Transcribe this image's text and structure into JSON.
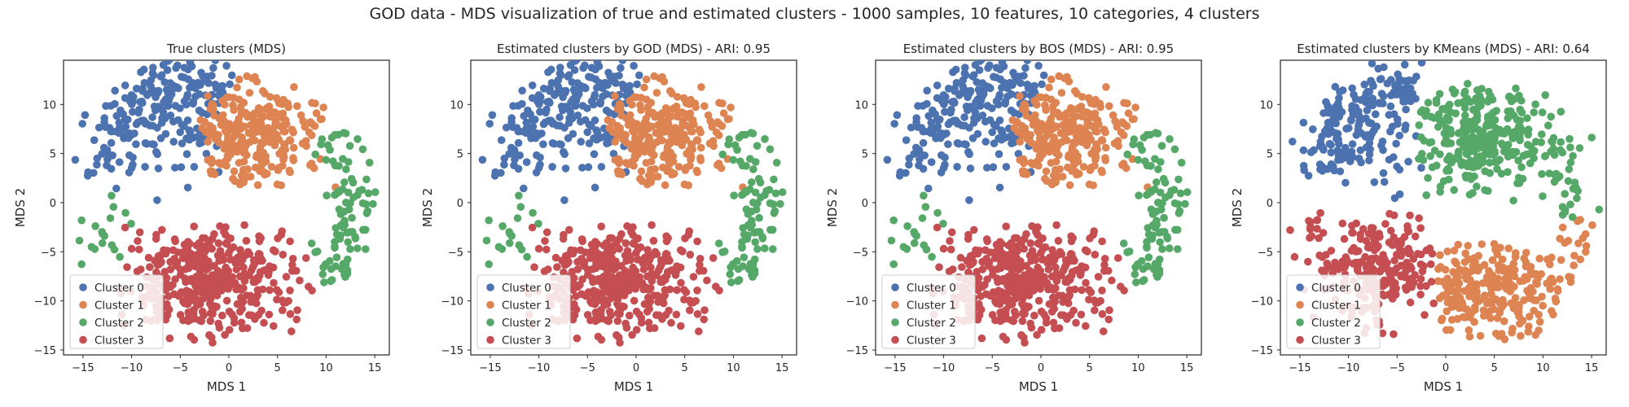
{
  "suptitle": "GOD data - MDS visualization of true and estimated clusters - 1000 samples, 10 features, 10 categories, 4 clusters",
  "colors": {
    "cluster_0": "#4c72b0",
    "cluster_1": "#dd8452",
    "cluster_2": "#55a868",
    "cluster_3": "#c44e52"
  },
  "chart_data": [
    {
      "type": "scatter",
      "title": "True clusters (MDS)",
      "xlabel": "MDS 1",
      "ylabel": "MDS 2",
      "xlim": [
        -17,
        16.5
      ],
      "ylim": [
        -15.5,
        14.5
      ],
      "xticks": [
        -15,
        -10,
        -5,
        0,
        5,
        10,
        15
      ],
      "yticks": [
        -15,
        -10,
        -5,
        0,
        5,
        10
      ],
      "grid": false,
      "legend_position": "lower-left",
      "series": [
        {
          "name": "Cluster 0",
          "color": "#4c72b0",
          "region": "upper-left arc",
          "approx_count": 250
        },
        {
          "name": "Cluster 1",
          "color": "#dd8452",
          "region": "upper-center blob",
          "approx_count": 250
        },
        {
          "name": "Cluster 2",
          "color": "#55a868",
          "region": "right arc and far-left sparse",
          "approx_count": 120
        },
        {
          "name": "Cluster 3",
          "color": "#c44e52",
          "region": "lower blob",
          "approx_count": 380
        }
      ]
    },
    {
      "type": "scatter",
      "title": "Estimated clusters by GOD (MDS) - ARI: 0.95",
      "xlabel": "MDS 1",
      "ylabel": "MDS 2",
      "xlim": [
        -17,
        16.5
      ],
      "ylim": [
        -15.5,
        14.5
      ],
      "xticks": [
        -15,
        -10,
        -5,
        0,
        5,
        10,
        15
      ],
      "yticks": [
        -15,
        -10,
        -5,
        0,
        5,
        10
      ],
      "grid": false,
      "legend_position": "lower-left",
      "series": [
        {
          "name": "Cluster 0",
          "color": "#4c72b0",
          "region": "upper-left arc",
          "approx_count": 240
        },
        {
          "name": "Cluster 1",
          "color": "#dd8452",
          "region": "upper-center blob",
          "approx_count": 260
        },
        {
          "name": "Cluster 2",
          "color": "#55a868",
          "region": "right arc and far-left sparse",
          "approx_count": 120
        },
        {
          "name": "Cluster 3",
          "color": "#c44e52",
          "region": "lower blob",
          "approx_count": 380
        }
      ]
    },
    {
      "type": "scatter",
      "title": "Estimated clusters by BOS (MDS) - ARI: 0.95",
      "xlabel": "MDS 1",
      "ylabel": "MDS 2",
      "xlim": [
        -17,
        16.5
      ],
      "ylim": [
        -15.5,
        14.5
      ],
      "xticks": [
        -15,
        -10,
        -5,
        0,
        5,
        10,
        15
      ],
      "yticks": [
        -15,
        -10,
        -5,
        0,
        5,
        10
      ],
      "grid": false,
      "legend_position": "lower-left",
      "series": [
        {
          "name": "Cluster 0",
          "color": "#4c72b0",
          "region": "upper-left arc",
          "approx_count": 240
        },
        {
          "name": "Cluster 1",
          "color": "#dd8452",
          "region": "upper-center blob",
          "approx_count": 260
        },
        {
          "name": "Cluster 2",
          "color": "#55a868",
          "region": "right arc and far-left sparse",
          "approx_count": 120
        },
        {
          "name": "Cluster 3",
          "color": "#c44e52",
          "region": "lower blob",
          "approx_count": 380
        }
      ]
    },
    {
      "type": "scatter",
      "title": "Estimated clusters by KMeans (MDS) - ARI: 0.64",
      "xlabel": "MDS 1",
      "ylabel": "MDS 2",
      "xlim": [
        -17,
        16.5
      ],
      "ylim": [
        -15.5,
        14.5
      ],
      "xticks": [
        -15,
        -10,
        -5,
        0,
        5,
        10,
        15
      ],
      "yticks": [
        -15,
        -10,
        -5,
        0,
        5,
        10
      ],
      "grid": false,
      "legend_position": "lower-left",
      "series": [
        {
          "name": "Cluster 0",
          "color": "#4c72b0",
          "region": "upper-left arc",
          "approx_count": 200
        },
        {
          "name": "Cluster 1",
          "color": "#dd8452",
          "region": "lower-right blob",
          "approx_count": 260
        },
        {
          "name": "Cluster 2",
          "color": "#55a868",
          "region": "upper-right blob",
          "approx_count": 300
        },
        {
          "name": "Cluster 3",
          "color": "#c44e52",
          "region": "lower-left blob",
          "approx_count": 240
        }
      ]
    }
  ]
}
